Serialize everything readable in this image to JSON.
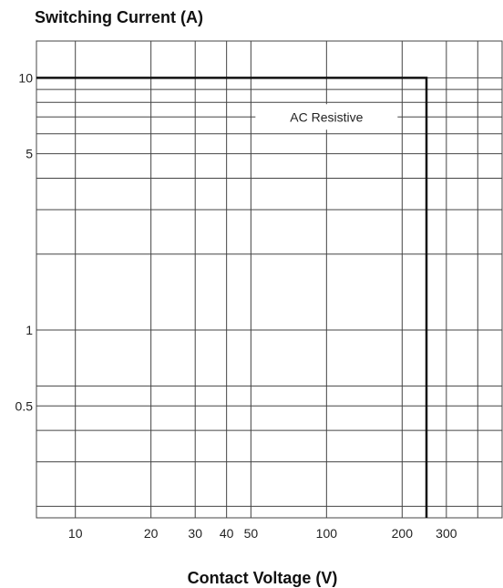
{
  "chart_data": {
    "type": "line",
    "title": "",
    "ylabel": "Switching Current (A)",
    "xlabel": "Contact Voltage (V)",
    "x_scale": "log",
    "y_scale": "log",
    "xlim": [
      7,
      500
    ],
    "ylim": [
      0.18,
      14
    ],
    "grid": true,
    "x_ticks": [
      {
        "value": 10,
        "label": "10"
      },
      {
        "value": 20,
        "label": "20"
      },
      {
        "value": 30,
        "label": "30"
      },
      {
        "value": 40,
        "label": "40"
      },
      {
        "value": 50,
        "label": "50"
      },
      {
        "value": 100,
        "label": "100"
      },
      {
        "value": 200,
        "label": "200"
      },
      {
        "value": 300,
        "label": "300"
      }
    ],
    "y_ticks": [
      {
        "value": 10,
        "label": "10"
      },
      {
        "value": 5,
        "label": "5"
      },
      {
        "value": 1,
        "label": "1"
      },
      {
        "value": 0.5,
        "label": "0.5"
      }
    ],
    "x_grid": [
      10,
      20,
      30,
      40,
      50,
      100,
      200,
      300,
      400
    ],
    "y_grid": [
      0.2,
      0.3,
      0.4,
      0.5,
      0.6,
      1,
      2,
      3,
      4,
      5,
      6,
      7,
      8,
      9,
      10
    ],
    "series": [
      {
        "name": "AC Resistive",
        "x": [
          7,
          250,
          250
        ],
        "y": [
          10,
          10,
          0.18
        ]
      }
    ],
    "annotation": {
      "text": "AC Resistive",
      "x": 100,
      "y": 7
    }
  }
}
